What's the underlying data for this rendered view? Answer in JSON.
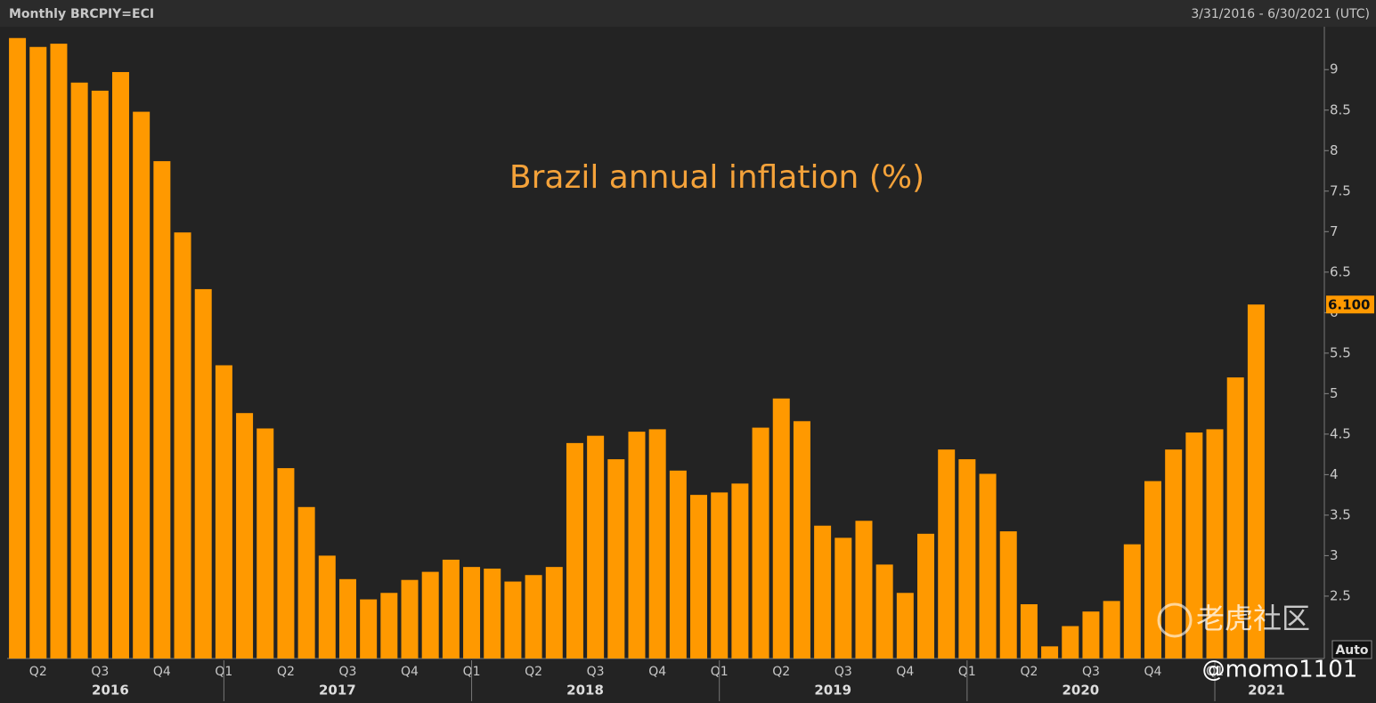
{
  "header": {
    "left": "Monthly BRCPIY=ECI",
    "right": "3/31/2016 - 6/30/2021 (UTC)"
  },
  "chart_data": {
    "type": "bar",
    "title": "Brazil annual inflation (%)",
    "color": "#ff9900",
    "categories": [
      null,
      "Q2",
      null,
      null,
      "Q3",
      null,
      null,
      "Q4",
      null,
      null,
      "Q1",
      null,
      null,
      "Q2",
      null,
      null,
      "Q3",
      null,
      null,
      "Q4",
      null,
      null,
      "Q1",
      null,
      null,
      "Q2",
      null,
      null,
      "Q3",
      null,
      null,
      "Q4",
      null,
      null,
      "Q1",
      null,
      null,
      "Q2",
      null,
      null,
      "Q3",
      null,
      null,
      "Q4",
      null,
      null,
      "Q1",
      null,
      null,
      "Q2",
      null,
      null,
      "Q3",
      null,
      null,
      "Q4",
      null,
      null,
      "Q1",
      null,
      null
    ],
    "years": [
      "2016",
      "2017",
      "2018",
      "2019",
      "2020",
      "2021"
    ],
    "values": [
      9.39,
      9.28,
      9.32,
      8.84,
      8.74,
      8.97,
      8.48,
      7.87,
      6.99,
      6.29,
      5.35,
      4.76,
      4.57,
      4.08,
      3.6,
      3.0,
      2.71,
      2.46,
      2.54,
      2.7,
      2.8,
      2.95,
      2.86,
      2.84,
      2.68,
      2.76,
      2.86,
      4.39,
      4.48,
      4.19,
      4.53,
      4.56,
      4.05,
      3.75,
      3.78,
      3.89,
      4.58,
      4.94,
      4.66,
      3.37,
      3.22,
      3.43,
      2.89,
      2.54,
      3.27,
      4.31,
      4.19,
      4.01,
      3.3,
      2.4,
      1.88,
      2.13,
      2.31,
      2.44,
      3.14,
      3.92,
      4.31,
      4.52,
      4.56,
      5.2,
      6.1
    ],
    "value_labels": [
      null,
      null,
      null,
      null,
      null,
      null,
      null,
      null,
      null,
      null,
      null,
      null,
      null,
      null,
      null,
      null,
      null,
      null,
      null,
      null,
      null,
      null,
      null,
      null,
      null,
      null,
      null,
      null,
      null,
      null,
      null,
      null,
      null,
      null,
      null,
      null,
      null,
      null,
      null,
      null,
      null,
      null,
      null,
      null,
      null,
      null,
      null,
      null,
      null,
      null,
      null,
      null,
      null,
      null,
      null,
      null,
      null,
      null,
      null,
      null,
      "6.100"
    ],
    "ylim": [
      1.73,
      9.53
    ],
    "yticks": [
      2.5,
      3,
      3.5,
      4,
      4.5,
      5,
      5.5,
      6,
      6.5,
      7,
      7.5,
      8,
      8.5,
      9
    ],
    "scale_button": "Auto"
  },
  "watermark": {
    "brand": "老虎社区",
    "user": "@momo1101"
  }
}
